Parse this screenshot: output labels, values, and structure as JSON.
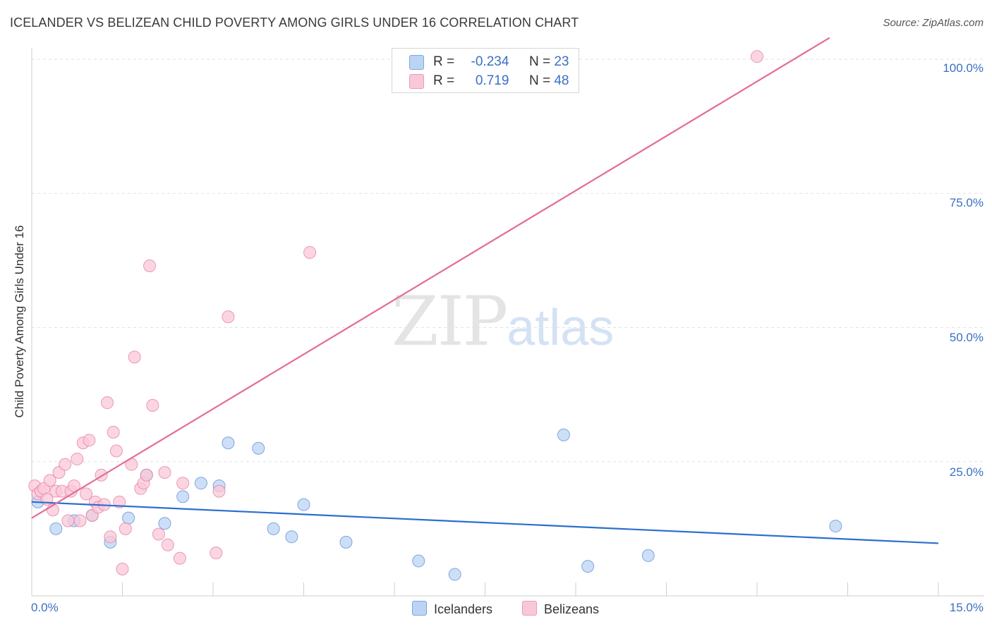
{
  "title": "ICELANDER VS BELIZEAN CHILD POVERTY AMONG GIRLS UNDER 16 CORRELATION CHART",
  "source": "Source: ZipAtlas.com",
  "watermark": {
    "zip": "ZIP",
    "atlas": "atlas"
  },
  "legend": {
    "rows": [
      {
        "r_label": "R =",
        "r_value": "-0.234",
        "n_label": "N =",
        "n_value": "23",
        "color": "#aecbf2"
      },
      {
        "r_label": "R =",
        "r_value": "0.719",
        "n_label": "N =",
        "n_value": "48",
        "color": "#f5bcd0"
      }
    ]
  },
  "bottom_legend": [
    "Icelanders",
    "Belizeans"
  ],
  "chart_data": {
    "type": "scatter",
    "title": "ICELANDER VS BELIZEAN CHILD POVERTY AMONG GIRLS UNDER 16 CORRELATION CHART",
    "xlabel": "",
    "ylabel": "Child Poverty Among Girls Under 16",
    "x_ticks": [
      "0.0%",
      "15.0%"
    ],
    "y_ticks": [
      "100.0%",
      "75.0%",
      "50.0%",
      "25.0%"
    ],
    "xlim": [
      0,
      15
    ],
    "ylim": [
      0,
      105
    ],
    "grid": true,
    "series": [
      {
        "name": "Icelanders",
        "color": "#5b8ed8",
        "fill": "#bcd4f4",
        "points": [
          [
            0.1,
            17.5
          ],
          [
            0.4,
            12.5
          ],
          [
            0.7,
            14.0
          ],
          [
            1.0,
            15.0
          ],
          [
            1.3,
            10.0
          ],
          [
            1.6,
            14.5
          ],
          [
            1.9,
            22.5
          ],
          [
            2.2,
            13.5
          ],
          [
            2.5,
            18.5
          ],
          [
            2.8,
            21.0
          ],
          [
            3.1,
            20.5
          ],
          [
            3.25,
            28.5
          ],
          [
            3.75,
            27.5
          ],
          [
            4.0,
            12.5
          ],
          [
            4.3,
            11.0
          ],
          [
            4.5,
            17.0
          ],
          [
            5.2,
            10.0
          ],
          [
            6.4,
            6.5
          ],
          [
            7.0,
            4.0
          ],
          [
            8.8,
            30.0
          ],
          [
            9.2,
            5.5
          ],
          [
            10.2,
            7.5
          ],
          [
            13.3,
            13.0
          ]
        ],
        "trend": {
          "x": [
            0,
            15
          ],
          "y": [
            17.5,
            9.8
          ]
        }
      },
      {
        "name": "Belizeans",
        "color": "#e8799e",
        "fill": "#f9c8d8",
        "points": [
          [
            0.05,
            20.5
          ],
          [
            0.1,
            19.0
          ],
          [
            0.15,
            19.5
          ],
          [
            0.2,
            20.0
          ],
          [
            0.25,
            18.0
          ],
          [
            0.3,
            21.5
          ],
          [
            0.35,
            16.0
          ],
          [
            0.4,
            19.5
          ],
          [
            0.45,
            23.0
          ],
          [
            0.5,
            19.5
          ],
          [
            0.55,
            24.5
          ],
          [
            0.6,
            14.0
          ],
          [
            0.65,
            19.5
          ],
          [
            0.7,
            20.5
          ],
          [
            0.75,
            25.5
          ],
          [
            0.8,
            14.0
          ],
          [
            0.85,
            28.5
          ],
          [
            0.9,
            19.0
          ],
          [
            0.95,
            29.0
          ],
          [
            1.0,
            15.0
          ],
          [
            1.05,
            17.5
          ],
          [
            1.1,
            16.5
          ],
          [
            1.15,
            22.5
          ],
          [
            1.2,
            17.0
          ],
          [
            1.25,
            36.0
          ],
          [
            1.3,
            11.0
          ],
          [
            1.35,
            30.5
          ],
          [
            1.4,
            27.0
          ],
          [
            1.45,
            17.5
          ],
          [
            1.5,
            5.0
          ],
          [
            1.55,
            12.5
          ],
          [
            1.65,
            24.5
          ],
          [
            1.7,
            44.5
          ],
          [
            1.8,
            20.0
          ],
          [
            1.85,
            21.0
          ],
          [
            1.9,
            22.5
          ],
          [
            1.95,
            61.5
          ],
          [
            2.0,
            35.5
          ],
          [
            2.1,
            11.5
          ],
          [
            2.2,
            23.0
          ],
          [
            2.25,
            9.5
          ],
          [
            2.45,
            7.0
          ],
          [
            2.5,
            21.0
          ],
          [
            3.05,
            8.0
          ],
          [
            3.1,
            19.5
          ],
          [
            3.25,
            52.0
          ],
          [
            4.6,
            64.0
          ],
          [
            12.0,
            100.5
          ]
        ],
        "trend": {
          "x": [
            0,
            13.2
          ],
          "y": [
            14.5,
            104.0
          ]
        }
      }
    ]
  }
}
